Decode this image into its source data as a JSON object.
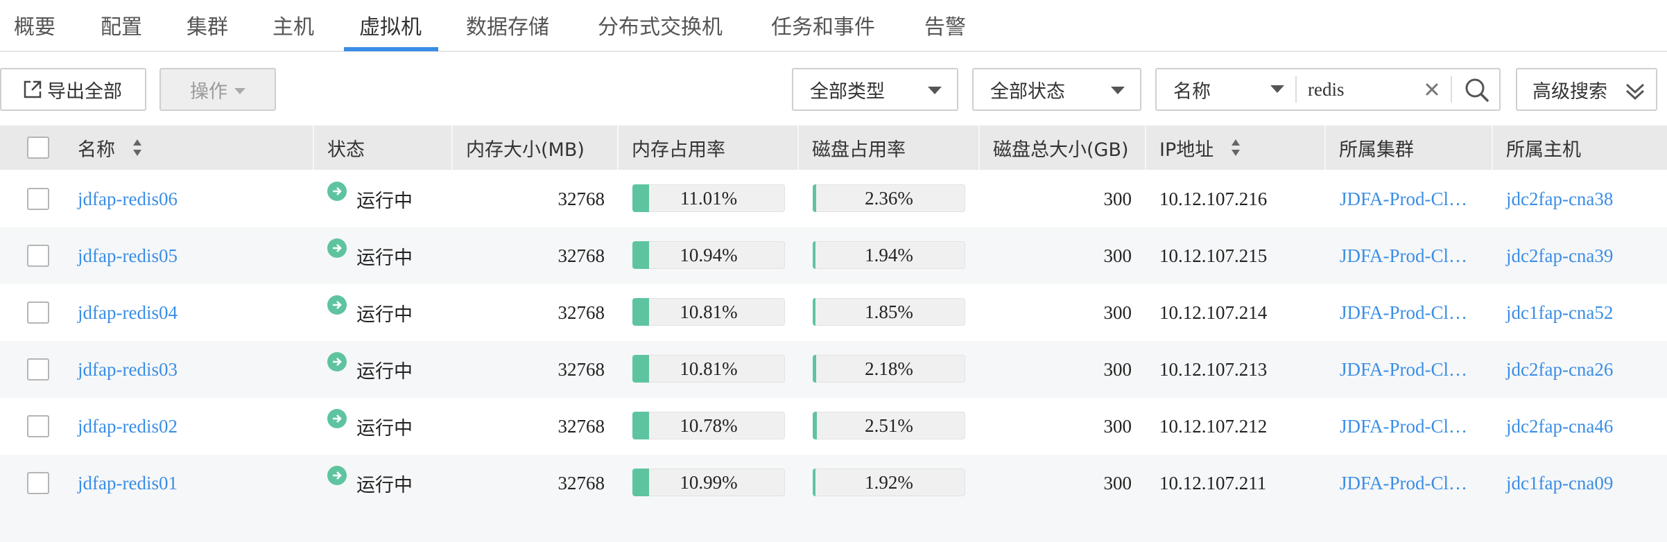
{
  "tabs": [
    {
      "label": "概要"
    },
    {
      "label": "配置"
    },
    {
      "label": "集群"
    },
    {
      "label": "主机"
    },
    {
      "label": "虚拟机",
      "active": true
    },
    {
      "label": "数据存储"
    },
    {
      "label": "分布式交换机"
    },
    {
      "label": "任务和事件"
    },
    {
      "label": "告警"
    }
  ],
  "toolbar": {
    "export_label": "导出全部",
    "ops_label": "操作",
    "type_filter": "全部类型",
    "status_filter": "全部状态",
    "search_field": "名称",
    "search_value": "redis",
    "advanced_label": "高级搜索"
  },
  "table": {
    "columns": [
      "名称",
      "状态",
      "内存大小(MB)",
      "内存占用率",
      "磁盘占用率",
      "磁盘总大小(GB)",
      "IP地址",
      "所属集群",
      "所属主机"
    ],
    "rows": [
      {
        "name": "jdfap-redis06",
        "status": "运行中",
        "memory_mb": "32768",
        "mem_usage": "11.01%",
        "mem_pct": 11.01,
        "disk_usage": "2.36%",
        "disk_pct": 2.36,
        "disk_total_gb": "300",
        "ip": "10.12.107.216",
        "cluster": "JDFA-Prod-Cl…",
        "host": "jdc2fap-cna38"
      },
      {
        "name": "jdfap-redis05",
        "status": "运行中",
        "memory_mb": "32768",
        "mem_usage": "10.94%",
        "mem_pct": 10.94,
        "disk_usage": "1.94%",
        "disk_pct": 1.94,
        "disk_total_gb": "300",
        "ip": "10.12.107.215",
        "cluster": "JDFA-Prod-Cl…",
        "host": "jdc2fap-cna39"
      },
      {
        "name": "jdfap-redis04",
        "status": "运行中",
        "memory_mb": "32768",
        "mem_usage": "10.81%",
        "mem_pct": 10.81,
        "disk_usage": "1.85%",
        "disk_pct": 1.85,
        "disk_total_gb": "300",
        "ip": "10.12.107.214",
        "cluster": "JDFA-Prod-Cl…",
        "host": "jdc1fap-cna52"
      },
      {
        "name": "jdfap-redis03",
        "status": "运行中",
        "memory_mb": "32768",
        "mem_usage": "10.81%",
        "mem_pct": 10.81,
        "disk_usage": "2.18%",
        "disk_pct": 2.18,
        "disk_total_gb": "300",
        "ip": "10.12.107.213",
        "cluster": "JDFA-Prod-Cl…",
        "host": "jdc2fap-cna26"
      },
      {
        "name": "jdfap-redis02",
        "status": "运行中",
        "memory_mb": "32768",
        "mem_usage": "10.78%",
        "mem_pct": 10.78,
        "disk_usage": "2.51%",
        "disk_pct": 2.51,
        "disk_total_gb": "300",
        "ip": "10.12.107.212",
        "cluster": "JDFA-Prod-Cl…",
        "host": "jdc2fap-cna46"
      },
      {
        "name": "jdfap-redis01",
        "status": "运行中",
        "memory_mb": "32768",
        "mem_usage": "10.99%",
        "mem_pct": 10.99,
        "disk_usage": "1.92%",
        "disk_pct": 1.92,
        "disk_total_gb": "300",
        "ip": "10.12.107.211",
        "cluster": "JDFA-Prod-Cl…",
        "host": "jdc1fap-cna09"
      }
    ]
  },
  "icons": {
    "export": "export-icon",
    "search": "search-icon",
    "clear": "close-icon",
    "advanced": "double-chevron-down-icon",
    "sort": "sort-icon",
    "status": "running-arrow-icon"
  },
  "colors": {
    "accent": "#3a8ee6",
    "link": "#3a8ee6",
    "bar_fill": "#5ec4a0",
    "status_icon": "#5ec4a0",
    "header_bg": "#e9e9e9",
    "row_alt_bg": "#f6f7f8"
  }
}
